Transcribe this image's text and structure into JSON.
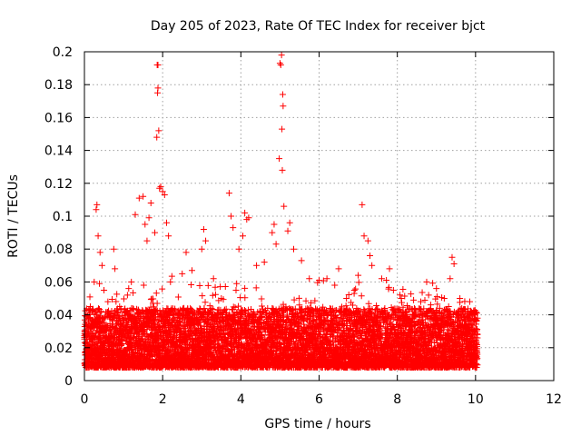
{
  "chart_data": {
    "type": "scatter",
    "title": "Day 205 of 2023, Rate Of TEC Index for receiver bjct",
    "xlabel": "GPS time / hours",
    "ylabel": "ROTI / TECUs",
    "xlim": [
      0,
      12
    ],
    "ylim": [
      0,
      0.2
    ],
    "x_ticks": [
      "0",
      "2",
      "4",
      "6",
      "8",
      "10",
      "12"
    ],
    "y_ticks": [
      "0",
      "0.02",
      "0.04",
      "0.06",
      "0.08",
      "0.1",
      "0.12",
      "0.14",
      "0.16",
      "0.18",
      "0.2"
    ],
    "grid": true,
    "marker": "+",
    "series_color": "#ff0000",
    "series": [
      {
        "name": "ROTI",
        "points": [
          [
            0.05,
            0.03
          ],
          [
            0.15,
            0.045
          ],
          [
            0.25,
            0.06
          ],
          [
            0.3,
            0.104
          ],
          [
            0.32,
            0.107
          ],
          [
            0.35,
            0.088
          ],
          [
            0.4,
            0.078
          ],
          [
            0.45,
            0.07
          ],
          [
            0.5,
            0.055
          ],
          [
            0.6,
            0.048
          ],
          [
            0.75,
            0.08
          ],
          [
            0.78,
            0.068
          ],
          [
            0.9,
            0.045
          ],
          [
            1.1,
            0.052
          ],
          [
            1.2,
            0.06
          ],
          [
            1.3,
            0.101
          ],
          [
            1.4,
            0.111
          ],
          [
            1.5,
            0.112
          ],
          [
            1.55,
            0.095
          ],
          [
            1.6,
            0.085
          ],
          [
            1.65,
            0.099
          ],
          [
            1.7,
            0.108
          ],
          [
            1.8,
            0.09
          ],
          [
            1.85,
            0.148
          ],
          [
            1.87,
            0.175
          ],
          [
            1.88,
            0.178
          ],
          [
            1.9,
            0.152
          ],
          [
            1.86,
            0.192
          ],
          [
            1.88,
            0.192
          ],
          [
            1.92,
            0.117
          ],
          [
            1.95,
            0.118
          ],
          [
            2.0,
            0.115
          ],
          [
            2.05,
            0.113
          ],
          [
            2.1,
            0.096
          ],
          [
            2.15,
            0.088
          ],
          [
            2.2,
            0.06
          ],
          [
            2.5,
            0.065
          ],
          [
            2.6,
            0.078
          ],
          [
            2.75,
            0.067
          ],
          [
            3.0,
            0.08
          ],
          [
            3.05,
            0.092
          ],
          [
            3.1,
            0.085
          ],
          [
            3.3,
            0.062
          ],
          [
            3.5,
            0.05
          ],
          [
            3.7,
            0.114
          ],
          [
            3.75,
            0.1
          ],
          [
            3.8,
            0.093
          ],
          [
            3.95,
            0.08
          ],
          [
            4.05,
            0.088
          ],
          [
            4.1,
            0.102
          ],
          [
            4.15,
            0.098
          ],
          [
            4.2,
            0.099
          ],
          [
            4.4,
            0.07
          ],
          [
            4.6,
            0.072
          ],
          [
            4.8,
            0.09
          ],
          [
            4.85,
            0.095
          ],
          [
            4.9,
            0.083
          ],
          [
            4.98,
            0.135
          ],
          [
            5.0,
            0.193
          ],
          [
            5.02,
            0.192
          ],
          [
            5.04,
            0.198
          ],
          [
            5.05,
            0.153
          ],
          [
            5.06,
            0.128
          ],
          [
            5.07,
            0.174
          ],
          [
            5.08,
            0.167
          ],
          [
            5.1,
            0.106
          ],
          [
            5.2,
            0.091
          ],
          [
            5.25,
            0.096
          ],
          [
            5.35,
            0.08
          ],
          [
            5.55,
            0.073
          ],
          [
            5.75,
            0.062
          ],
          [
            6.0,
            0.061
          ],
          [
            6.2,
            0.062
          ],
          [
            6.4,
            0.058
          ],
          [
            6.5,
            0.068
          ],
          [
            6.7,
            0.05
          ],
          [
            6.9,
            0.055
          ],
          [
            7.0,
            0.064
          ],
          [
            7.1,
            0.107
          ],
          [
            7.15,
            0.088
          ],
          [
            7.25,
            0.085
          ],
          [
            7.3,
            0.076
          ],
          [
            7.35,
            0.07
          ],
          [
            7.6,
            0.062
          ],
          [
            7.8,
            0.068
          ],
          [
            7.9,
            0.055
          ],
          [
            8.1,
            0.05
          ],
          [
            8.4,
            0.04
          ],
          [
            8.6,
            0.048
          ],
          [
            8.75,
            0.06
          ],
          [
            8.8,
            0.052
          ],
          [
            9.0,
            0.056
          ],
          [
            9.2,
            0.05
          ],
          [
            9.35,
            0.062
          ],
          [
            9.4,
            0.075
          ],
          [
            9.45,
            0.071
          ],
          [
            9.6,
            0.05
          ],
          [
            9.85,
            0.04
          ],
          [
            9.95,
            0.036
          ],
          [
            10.05,
            0.038
          ]
        ]
      }
    ]
  }
}
